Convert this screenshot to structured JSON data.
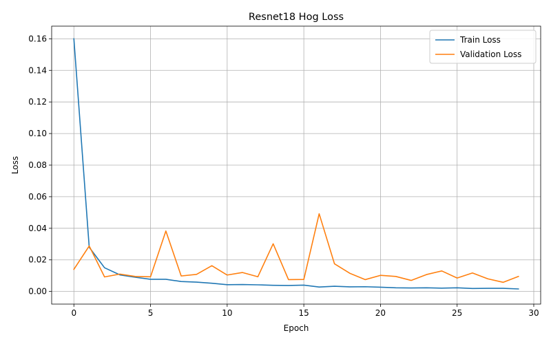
{
  "chart_data": {
    "type": "line",
    "title": "Resnet18 Hog Loss",
    "xlabel": "Epoch",
    "ylabel": "Loss",
    "xlim": [
      -1.45,
      30.45
    ],
    "ylim": [
      -0.008,
      0.168
    ],
    "xticks": [
      0,
      5,
      10,
      15,
      20,
      25,
      30
    ],
    "yticks": [
      0.0,
      0.02,
      0.04,
      0.06,
      0.08,
      0.1,
      0.12,
      0.14,
      0.16
    ],
    "grid": true,
    "legend_position": "top-right",
    "x": [
      0,
      1,
      2,
      3,
      4,
      5,
      6,
      7,
      8,
      9,
      10,
      11,
      12,
      13,
      14,
      15,
      16,
      17,
      18,
      19,
      20,
      21,
      22,
      23,
      24,
      25,
      26,
      27,
      28,
      29
    ],
    "series": [
      {
        "name": "Train Loss",
        "color": "#1f77b4",
        "values": [
          0.16,
          0.028,
          0.015,
          0.0105,
          0.009,
          0.0077,
          0.0077,
          0.0063,
          0.0059,
          0.0052,
          0.0043,
          0.0044,
          0.0042,
          0.0039,
          0.0038,
          0.004,
          0.0028,
          0.0033,
          0.0029,
          0.003,
          0.0027,
          0.0023,
          0.0022,
          0.0023,
          0.0021,
          0.0023,
          0.0019,
          0.002,
          0.002,
          0.0016
        ]
      },
      {
        "name": "Validation Loss",
        "color": "#ff7f0e",
        "values": [
          0.014,
          0.0288,
          0.0092,
          0.011,
          0.0095,
          0.0093,
          0.0383,
          0.0098,
          0.0108,
          0.0163,
          0.0104,
          0.012,
          0.0093,
          0.0302,
          0.0075,
          0.0076,
          0.0492,
          0.0175,
          0.0115,
          0.0075,
          0.0102,
          0.0095,
          0.007,
          0.0107,
          0.013,
          0.0085,
          0.0117,
          0.008,
          0.0058,
          0.0095
        ]
      }
    ]
  }
}
